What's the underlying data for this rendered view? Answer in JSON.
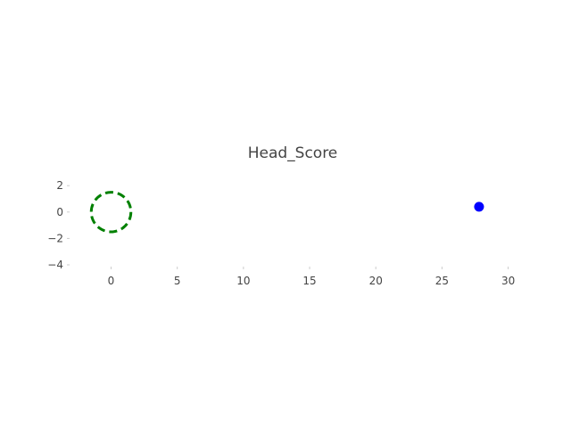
{
  "chart_data": {
    "type": "scatter",
    "title": "Head_Score",
    "xlabel": "",
    "ylabel": "",
    "xlim": [
      -3,
      30.5
    ],
    "ylim": [
      -4,
      3.5
    ],
    "x_ticks": [
      0,
      5,
      10,
      15,
      20,
      25,
      30
    ],
    "y_ticks": [
      2,
      0,
      -2,
      -4
    ],
    "y_tick_labels": [
      "2",
      "0",
      "−2",
      "−4"
    ],
    "grid": false,
    "points": [
      {
        "x": 27.8,
        "y": 0.4,
        "color": "#0000ff"
      }
    ],
    "circle": {
      "center": [
        0,
        0
      ],
      "radius": 1.5,
      "color": "#008000",
      "style": "dashed"
    }
  }
}
